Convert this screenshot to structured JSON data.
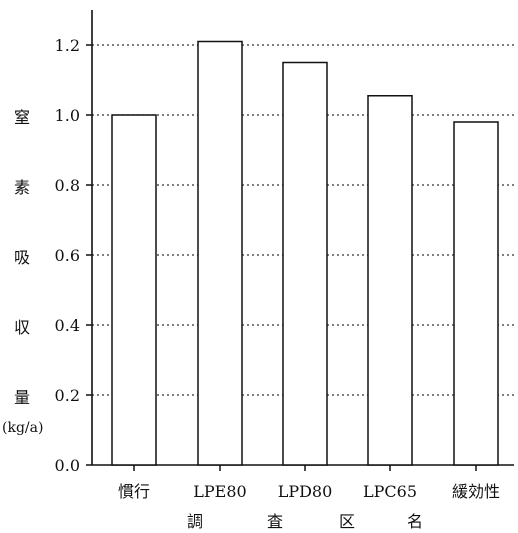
{
  "chart_data": {
    "type": "bar",
    "categories": [
      "慣行",
      "LPE80",
      "LPD80",
      "LPC65",
      "緩効性"
    ],
    "values": [
      1.0,
      1.21,
      1.15,
      1.055,
      0.98
    ],
    "ylim": [
      0,
      1.2
    ],
    "yticks": [
      "0.0",
      "0.2",
      "0.4",
      "0.6",
      "0.8",
      "1.0",
      "1.2"
    ],
    "ylabel_chars": [
      "窒",
      "素",
      "吸",
      "収",
      "量"
    ],
    "ylabel_unit": "(kg/a)",
    "xlabel_chars": [
      "調",
      "査",
      "区",
      "名"
    ],
    "grid": "dotted horizontal",
    "bar_fill": "#ffffff",
    "bar_stroke": "#111111"
  }
}
